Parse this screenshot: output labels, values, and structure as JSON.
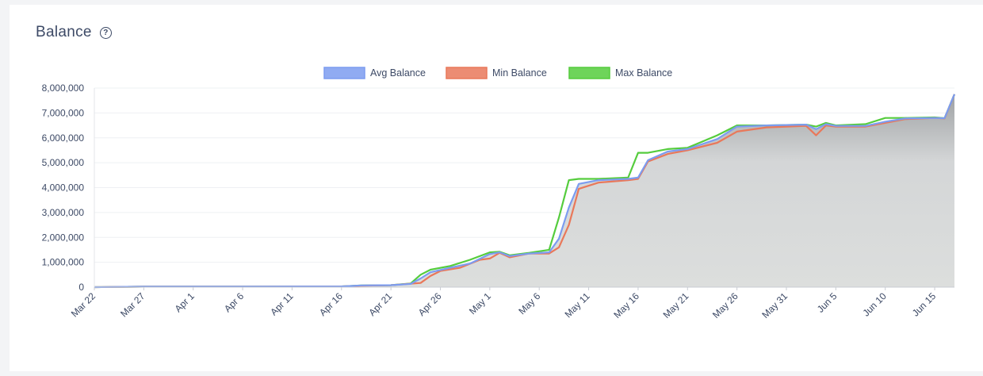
{
  "card": {
    "title": "Balance",
    "help_icon": "question-circle-icon"
  },
  "colors": {
    "avg": "#7c9cf0",
    "min": "#e9785a",
    "max": "#55cc3d",
    "area": "#d4d6d7",
    "grid": "#eef0f3",
    "text": "#3d4a66"
  },
  "chart_data": {
    "type": "line",
    "title": "Balance",
    "ylim": [
      0,
      8000000
    ],
    "yticks": [
      0,
      1000000,
      2000000,
      3000000,
      4000000,
      5000000,
      6000000,
      7000000,
      8000000
    ],
    "ytick_labels": [
      "0",
      "1,000,000",
      "2,000,000",
      "3,000,000",
      "4,000,000",
      "5,000,000",
      "6,000,000",
      "7,000,000",
      "8,000,000"
    ],
    "xlim": [
      "2023-03-22",
      "2023-06-17"
    ],
    "xticks": [
      "2023-03-22",
      "2023-03-27",
      "2023-04-01",
      "2023-04-06",
      "2023-04-11",
      "2023-04-16",
      "2023-04-21",
      "2023-04-26",
      "2023-05-01",
      "2023-05-06",
      "2023-05-11",
      "2023-05-16",
      "2023-05-21",
      "2023-05-26",
      "2023-05-31",
      "2023-06-05",
      "2023-06-10",
      "2023-06-15"
    ],
    "xtick_labels": [
      "Mar 22",
      "Mar 27",
      "Apr 1",
      "Apr 6",
      "Apr 11",
      "Apr 16",
      "Apr 21",
      "Apr 26",
      "May 1",
      "May 6",
      "May 11",
      "May 16",
      "May 21",
      "May 26",
      "May 31",
      "Jun 5",
      "Jun 10",
      "Jun 15"
    ],
    "legend_position": "top-center",
    "grid": true,
    "area_fill": true,
    "series": [
      {
        "name": "Avg Balance",
        "key": "avg",
        "points": [
          [
            "2023-03-22",
            0
          ],
          [
            "2023-03-27",
            20000
          ],
          [
            "2023-04-06",
            20000
          ],
          [
            "2023-04-16",
            30000
          ],
          [
            "2023-04-18",
            70000
          ],
          [
            "2023-04-21",
            80000
          ],
          [
            "2023-04-23",
            130000
          ],
          [
            "2023-04-24",
            350000
          ],
          [
            "2023-04-25",
            600000
          ],
          [
            "2023-04-27",
            780000
          ],
          [
            "2023-04-29",
            950000
          ],
          [
            "2023-05-01",
            1330000
          ],
          [
            "2023-05-02",
            1400000
          ],
          [
            "2023-05-03",
            1250000
          ],
          [
            "2023-05-05",
            1350000
          ],
          [
            "2023-05-07",
            1400000
          ],
          [
            "2023-05-08",
            1950000
          ],
          [
            "2023-05-09",
            3200000
          ],
          [
            "2023-05-10",
            4150000
          ],
          [
            "2023-05-12",
            4300000
          ],
          [
            "2023-05-15",
            4350000
          ],
          [
            "2023-05-16",
            4400000
          ],
          [
            "2023-05-17",
            5100000
          ],
          [
            "2023-05-19",
            5450000
          ],
          [
            "2023-05-21",
            5550000
          ],
          [
            "2023-05-24",
            5950000
          ],
          [
            "2023-05-26",
            6450000
          ],
          [
            "2023-05-29",
            6500000
          ],
          [
            "2023-06-02",
            6530000
          ],
          [
            "2023-06-03",
            6350000
          ],
          [
            "2023-06-04",
            6550000
          ],
          [
            "2023-06-05",
            6480000
          ],
          [
            "2023-06-08",
            6480000
          ],
          [
            "2023-06-10",
            6650000
          ],
          [
            "2023-06-12",
            6780000
          ],
          [
            "2023-06-15",
            6800000
          ],
          [
            "2023-06-16",
            6790000
          ],
          [
            "2023-06-17",
            7750000
          ]
        ]
      },
      {
        "name": "Min Balance",
        "key": "min",
        "points": [
          [
            "2023-03-22",
            0
          ],
          [
            "2023-03-27",
            20000
          ],
          [
            "2023-04-06",
            20000
          ],
          [
            "2023-04-16",
            30000
          ],
          [
            "2023-04-18",
            60000
          ],
          [
            "2023-04-21",
            80000
          ],
          [
            "2023-04-24",
            170000
          ],
          [
            "2023-04-25",
            450000
          ],
          [
            "2023-04-26",
            650000
          ],
          [
            "2023-04-28",
            780000
          ],
          [
            "2023-04-30",
            1100000
          ],
          [
            "2023-05-01",
            1150000
          ],
          [
            "2023-05-02",
            1380000
          ],
          [
            "2023-05-03",
            1200000
          ],
          [
            "2023-05-05",
            1350000
          ],
          [
            "2023-05-07",
            1350000
          ],
          [
            "2023-05-08",
            1600000
          ],
          [
            "2023-05-09",
            2500000
          ],
          [
            "2023-05-10",
            3950000
          ],
          [
            "2023-05-12",
            4200000
          ],
          [
            "2023-05-15",
            4300000
          ],
          [
            "2023-05-16",
            4350000
          ],
          [
            "2023-05-17",
            5050000
          ],
          [
            "2023-05-19",
            5350000
          ],
          [
            "2023-05-21",
            5500000
          ],
          [
            "2023-05-24",
            5800000
          ],
          [
            "2023-05-26",
            6250000
          ],
          [
            "2023-05-29",
            6420000
          ],
          [
            "2023-06-02",
            6480000
          ],
          [
            "2023-06-03",
            6100000
          ],
          [
            "2023-06-04",
            6500000
          ],
          [
            "2023-06-05",
            6450000
          ],
          [
            "2023-06-08",
            6450000
          ],
          [
            "2023-06-10",
            6600000
          ],
          [
            "2023-06-12",
            6750000
          ],
          [
            "2023-06-15",
            6800000
          ],
          [
            "2023-06-16",
            6780000
          ],
          [
            "2023-06-17",
            7750000
          ]
        ]
      },
      {
        "name": "Max Balance",
        "key": "max",
        "points": [
          [
            "2023-03-22",
            0
          ],
          [
            "2023-03-27",
            20000
          ],
          [
            "2023-04-06",
            20000
          ],
          [
            "2023-04-16",
            30000
          ],
          [
            "2023-04-18",
            70000
          ],
          [
            "2023-04-21",
            80000
          ],
          [
            "2023-04-23",
            150000
          ],
          [
            "2023-04-24",
            500000
          ],
          [
            "2023-04-25",
            700000
          ],
          [
            "2023-04-27",
            850000
          ],
          [
            "2023-04-29",
            1100000
          ],
          [
            "2023-05-01",
            1400000
          ],
          [
            "2023-05-02",
            1420000
          ],
          [
            "2023-05-03",
            1280000
          ],
          [
            "2023-05-05",
            1380000
          ],
          [
            "2023-05-07",
            1500000
          ],
          [
            "2023-05-08",
            2800000
          ],
          [
            "2023-05-09",
            4300000
          ],
          [
            "2023-05-10",
            4350000
          ],
          [
            "2023-05-12",
            4350000
          ],
          [
            "2023-05-15",
            4400000
          ],
          [
            "2023-05-16",
            5400000
          ],
          [
            "2023-05-17",
            5400000
          ],
          [
            "2023-05-19",
            5550000
          ],
          [
            "2023-05-21",
            5600000
          ],
          [
            "2023-05-24",
            6100000
          ],
          [
            "2023-05-26",
            6500000
          ],
          [
            "2023-05-29",
            6500000
          ],
          [
            "2023-06-02",
            6530000
          ],
          [
            "2023-06-03",
            6450000
          ],
          [
            "2023-06-04",
            6600000
          ],
          [
            "2023-06-05",
            6500000
          ],
          [
            "2023-06-08",
            6550000
          ],
          [
            "2023-06-10",
            6800000
          ],
          [
            "2023-06-12",
            6800000
          ],
          [
            "2023-06-15",
            6820000
          ],
          [
            "2023-06-16",
            6790000
          ],
          [
            "2023-06-17",
            7750000
          ]
        ]
      }
    ]
  }
}
